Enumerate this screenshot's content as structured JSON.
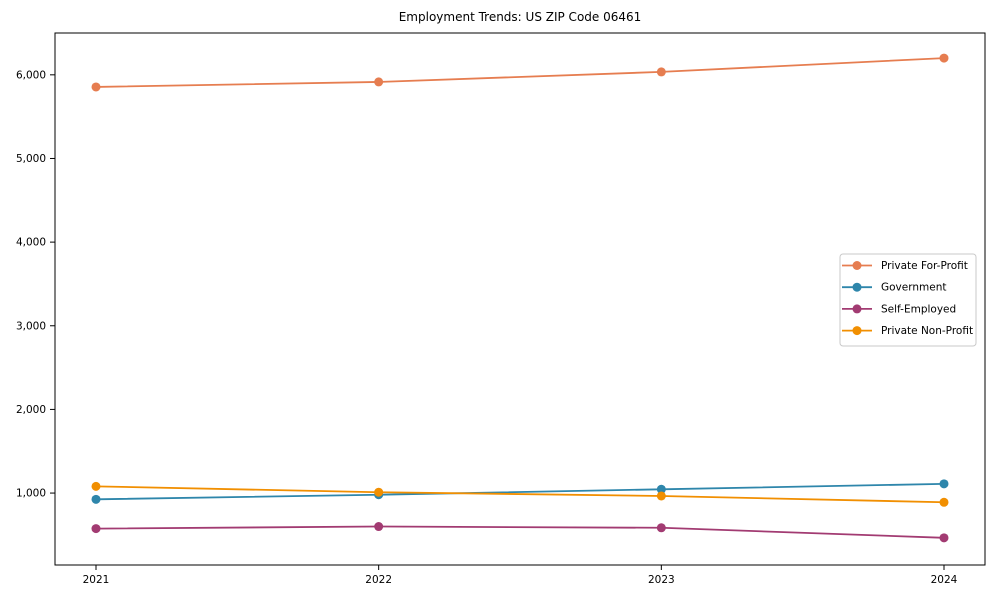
{
  "header": {
    "title": "Employment Trends: US ZIP Code 06461"
  },
  "chart_data": {
    "type": "line",
    "title": "Employment Trends: US ZIP Code 06461",
    "xlabel": "",
    "ylabel": "",
    "x": [
      "2021",
      "2022",
      "2023",
      "2024"
    ],
    "series": [
      {
        "name": "Private For-Profit",
        "color": "#e67d50",
        "values": [
          5855,
          5915,
          6035,
          6200
        ]
      },
      {
        "name": "Government",
        "color": "#2e86ab",
        "values": [
          925,
          980,
          1045,
          1110
        ]
      },
      {
        "name": "Self-Employed",
        "color": "#a23b72",
        "values": [
          575,
          600,
          585,
          465
        ]
      },
      {
        "name": "Private Non-Profit",
        "color": "#f18f01",
        "values": [
          1080,
          1010,
          965,
          890
        ]
      }
    ],
    "ylim": [
      140,
      6500
    ],
    "yticks": [
      1000,
      2000,
      3000,
      4000,
      5000,
      6000
    ],
    "ytick_labels": [
      "1,000",
      "2,000",
      "3,000",
      "4,000",
      "5,000",
      "6,000"
    ],
    "grid": false,
    "legend_position": "right-center",
    "marker": "circle",
    "frame_color": "#000000",
    "legend_border_color": "#c9c9c9"
  }
}
